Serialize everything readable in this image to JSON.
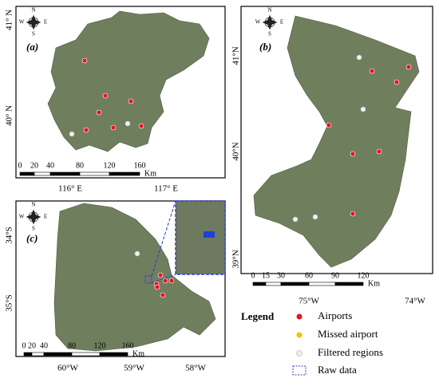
{
  "panels": [
    {
      "label": "(a)",
      "lat_labels": [
        "41° N",
        "40° N"
      ],
      "lon_labels": [
        "116° E",
        "117° E"
      ],
      "scale_labels": [
        "0",
        "20",
        "40",
        "80",
        "120",
        "160"
      ],
      "scale_unit": "Km"
    },
    {
      "label": "(b)",
      "lat_labels": [
        "41°N",
        "40°N",
        "39°N"
      ],
      "lon_labels": [
        "75°W",
        "74°W"
      ],
      "scale_labels": [
        "0",
        "15",
        "30",
        "60",
        "90",
        "120"
      ],
      "scale_unit": "Km"
    },
    {
      "label": "(c)",
      "lat_labels": [
        "34°S",
        "35°S"
      ],
      "lon_labels": [
        "60°W",
        "59°W",
        "58°W"
      ],
      "scale_labels": [
        "0",
        "20",
        "40",
        "80",
        "120",
        "160"
      ],
      "scale_unit": "Km"
    }
  ],
  "compass": [
    "N",
    "S",
    "W",
    "E"
  ],
  "legend": {
    "title": "Legend",
    "items": [
      "Airports",
      "Missed airport",
      "Filtered regions",
      "Raw data"
    ]
  }
}
